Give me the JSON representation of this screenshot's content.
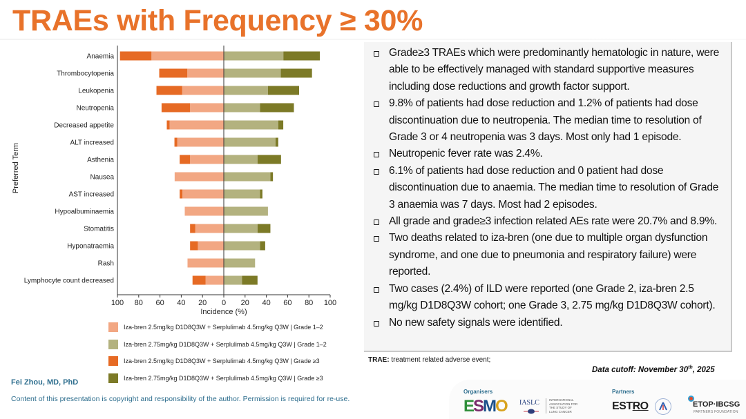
{
  "slide": {
    "title": "TRAEs with Frequency ≥ 30%"
  },
  "chart_data": {
    "type": "bar",
    "orientation": "horizontal-diverging-stacked",
    "xlabel": "Incidence (%)",
    "ylabel": "Preferred Term",
    "xlim_left": [
      100,
      0
    ],
    "xlim_right": [
      0,
      100
    ],
    "xticks": [
      "100",
      "80",
      "60",
      "40",
      "20",
      "0",
      "20",
      "40",
      "60",
      "80",
      "100"
    ],
    "categories": [
      "Anaemia",
      "Thrombocytopenia",
      "Leukopenia",
      "Neutropenia",
      "Decreased appetite",
      "ALT increased",
      "Asthenia",
      "Nausea",
      "AST increased",
      "Hypoalbuminaemia",
      "Stomatitis",
      "Hyponatraemia",
      "Rash",
      "Lymphocyte count decreased"
    ],
    "series": [
      {
        "name": "Iza-bren 2.5mg/kg D1D8Q3W + Serplulimab 4.5mg/kg Q3W | Grade 1–2",
        "side": "left",
        "color": "#f2a783",
        "values": [
          68.0,
          34.3,
          39.1,
          31.7,
          51.0,
          43.8,
          31.7,
          46.2,
          38.9,
          36.7,
          26.8,
          24.4,
          34.1,
          17.1
        ]
      },
      {
        "name": "Iza-bren 2.75mg/kg D1D8Q3W + Serplulimab 4.5mg/kg Q3W | Grade 1–2",
        "side": "right",
        "color": "#b3b27f",
        "values": [
          56.0,
          53.6,
          41.5,
          34.1,
          51.2,
          48.6,
          31.7,
          43.8,
          34.1,
          41.5,
          31.7,
          34.1,
          29.4,
          17.1
        ]
      },
      {
        "name": "Iza-bren 2.5mg/kg D1D8Q3W + Serplulimab 4.5mg/kg Q3W | Grade ≥3",
        "side": "left",
        "color": "#e66a24",
        "values": [
          29.6,
          26.4,
          24.2,
          26.8,
          2.6,
          2.6,
          9.8,
          0,
          2.6,
          0,
          4.9,
          7.3,
          0,
          12.3
        ]
      },
      {
        "name": "Iza-bren 2.75mg/kg D1D8Q3W + Serplulimab 4.5mg/kg Q3W | Grade ≥3",
        "side": "right",
        "color": "#7c7a27",
        "values": [
          34.3,
          29.3,
          29.3,
          31.8,
          4.7,
          2.6,
          22.1,
          2.4,
          2.2,
          0,
          12.1,
          4.8,
          0,
          14.6
        ]
      }
    ],
    "legend_position": "bottom",
    "grid": false
  },
  "notes": {
    "bullets": [
      "Grade≥3 TRAEs which were predominantly hematologic in nature, were able to be effectively managed with standard supportive measures including dose reductions and growth factor support.",
      "9.8% of patients had dose reduction and 1.2% of patients had dose discontinuation due to neutropenia. The median time to resolution of Grade 3 or 4 neutropenia was 3 days. Most only had 1 episode.",
      "Neutropenic fever rate was 2.4%.",
      "6.1% of patients had dose reduction and 0 patient had dose discontinuation due to anaemia. The median time to resolution of Grade 3 anaemia was 7 days. Most had 2 episodes.",
      "All grade and grade≥3 infection related AEs rate were 20.7% and 8.9%.",
      "Two deaths related to iza-bren (one due to multiple organ dysfunction syndrome, and one due to pneumonia and respiratory failure) were reported.",
      "Two cases (2.4%) of ILD were reported (one Grade 2, iza-bren 2.5 mg/kg D1D8Q3W cohort; one Grade 3, 2.75 mg/kg D1D8Q3W cohort).",
      "No new safety signals were identified."
    ]
  },
  "footnote": {
    "term": "TRAE:",
    "definition": " treatment related adverse event;"
  },
  "cutoff": {
    "prefix": "Data cutoff: November 30",
    "sup": "th",
    "suffix": ", 2025"
  },
  "footer": {
    "author": "Fei Zhou, MD, PhD",
    "copyright": "Content of this presentation is copyright and responsibility of the author. Permission is required for re-use.",
    "organisers_label": "Organisers",
    "partners_label": "Partners",
    "logos": {
      "esmo": [
        "E",
        "S",
        "M",
        "O"
      ],
      "iaslc": "IASLC",
      "iaslc_sub": "INTERNATIONAL ASSOCIATION FOR THE STUDY OF LUNG CANCER",
      "estro_a": "EST",
      "estro_b": "RO",
      "etop": "ETOP·IBCSG",
      "etop_sub": "PARTNERS FOUNDATION"
    }
  }
}
